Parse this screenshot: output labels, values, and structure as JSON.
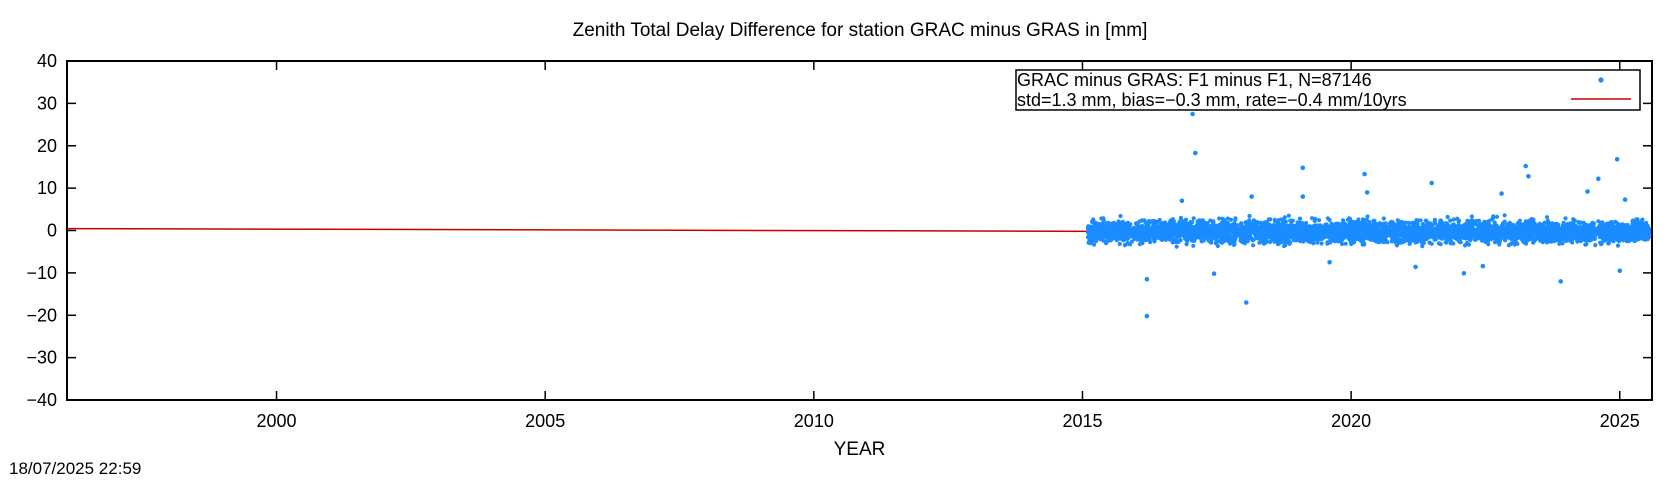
{
  "chart_data": {
    "type": "scatter",
    "title": "Zenith Total Delay Difference for station GRAC minus GRAS in [mm]",
    "xlabel": "YEAR",
    "ylabel": "",
    "xlim": [
      1996.1,
      2025.6
    ],
    "ylim": [
      -40,
      40
    ],
    "xticks": [
      2000,
      2005,
      2010,
      2015,
      2020,
      2025
    ],
    "yticks": [
      40,
      30,
      20,
      10,
      0,
      -10,
      -20,
      -30,
      -40
    ],
    "xtick_labels": [
      "2000",
      "2005",
      "2010",
      "2015",
      "2020",
      "2025"
    ],
    "ytick_labels": [
      "40",
      "30",
      "20",
      "10",
      "0",
      "−10",
      "−20",
      "−30",
      "−40"
    ],
    "grid": false,
    "legend_position": "top-right",
    "series": [
      {
        "name": "GRAC minus GRAS: F1 minus F1, N=87146",
        "kind": "points",
        "color": "#1a8cff",
        "x_range": [
          2015.1,
          2025.55
        ],
        "y_band": [
          -4.5,
          3.5
        ],
        "outliers": [
          {
            "x": 2016.2,
            "y": -20.2
          },
          {
            "x": 2016.2,
            "y": -11.5
          },
          {
            "x": 2017.05,
            "y": 27.5
          },
          {
            "x": 2017.1,
            "y": 18.3
          },
          {
            "x": 2017.45,
            "y": -10.2
          },
          {
            "x": 2018.05,
            "y": -17.0
          },
          {
            "x": 2019.1,
            "y": 14.8
          },
          {
            "x": 2019.1,
            "y": 8.0
          },
          {
            "x": 2019.6,
            "y": -7.5
          },
          {
            "x": 2020.25,
            "y": 13.3
          },
          {
            "x": 2020.3,
            "y": 9.0
          },
          {
            "x": 2021.5,
            "y": 11.2
          },
          {
            "x": 2022.1,
            "y": -10.1
          },
          {
            "x": 2022.8,
            "y": 8.7
          },
          {
            "x": 2023.25,
            "y": 15.2
          },
          {
            "x": 2023.3,
            "y": 12.8
          },
          {
            "x": 2023.9,
            "y": -12.0
          },
          {
            "x": 2024.4,
            "y": 9.2
          },
          {
            "x": 2024.6,
            "y": 12.2
          },
          {
            "x": 2024.95,
            "y": 16.8
          },
          {
            "x": 2025.1,
            "y": 7.3
          },
          {
            "x": 2025.0,
            "y": -9.5
          },
          {
            "x": 2016.85,
            "y": 7.0
          },
          {
            "x": 2018.15,
            "y": 8.0
          },
          {
            "x": 2021.2,
            "y": -8.6
          },
          {
            "x": 2022.45,
            "y": -8.4
          }
        ]
      },
      {
        "name": "std=1.3 mm, bias=−0.3 mm, rate=−0.4 mm/10yrs",
        "kind": "line",
        "color": "#cc0000",
        "points": [
          {
            "x": 1996.1,
            "y": 0.45
          },
          {
            "x": 2025.6,
            "y": -0.55
          }
        ]
      }
    ],
    "timestamp": "18/07/2025 22:59"
  }
}
